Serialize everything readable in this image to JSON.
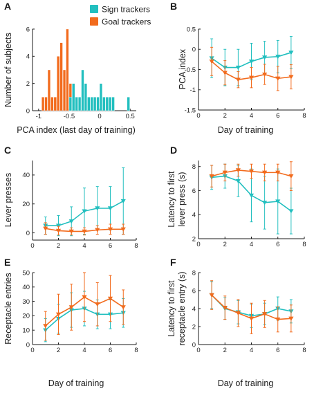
{
  "colors": {
    "sign": "#22BFBF",
    "goal": "#F26B1D"
  },
  "legend": {
    "sign": "Sign trackers",
    "goal": "Goal trackers",
    "placement": "top-right"
  },
  "chart_data": [
    {
      "id": "A",
      "type": "bar",
      "letter": "A",
      "xlabel": "PCA index (last day of training)",
      "ylabel": "Number of subjects",
      "xlim": [
        -1.1,
        0.6
      ],
      "ylim": [
        0,
        6
      ],
      "xticks": [
        -1,
        -0.5,
        0,
        0.5
      ],
      "xtick_labels": [
        "-1",
        "-0.5",
        "0",
        "0.5"
      ],
      "yticks": [
        0,
        2,
        4,
        6
      ],
      "ytick_labels": [
        "0",
        "2",
        "4",
        "6"
      ],
      "bin_width": 0.05,
      "series": [
        {
          "name": "Goal trackers",
          "color_key": "goal",
          "bin_starts": [
            -0.95,
            -0.9,
            -0.85,
            -0.8,
            -0.75,
            -0.7,
            -0.65,
            -0.6,
            -0.55,
            -0.5
          ],
          "values": [
            1,
            1,
            3,
            1,
            1,
            4,
            5,
            3,
            6,
            2
          ]
        },
        {
          "name": "Sign trackers",
          "color_key": "sign",
          "bin_starts": [
            -0.5,
            -0.45,
            -0.4,
            -0.35,
            -0.3,
            -0.25,
            -0.2,
            -0.15,
            -0.1,
            -0.05,
            0.0,
            0.05,
            0.1,
            0.15,
            0.2,
            0.45
          ],
          "values": [
            1,
            2,
            1,
            1,
            3,
            2,
            1,
            1,
            1,
            1,
            2,
            1,
            1,
            1,
            1,
            1
          ]
        }
      ]
    },
    {
      "id": "B",
      "type": "line",
      "letter": "B",
      "xlabel": "Day of training",
      "ylabel": "PCA index",
      "xlim": [
        0,
        8
      ],
      "ylim": [
        -1.5,
        0.5
      ],
      "xticks": [
        0,
        2,
        4,
        6,
        8
      ],
      "xtick_labels": [
        "0",
        "2",
        "4",
        "6",
        "8"
      ],
      "yticks": [
        -1.5,
        -1,
        -0.5,
        0,
        0.5
      ],
      "ytick_labels": [
        "-1.5",
        "-1",
        "-0.5",
        "0",
        "0.5"
      ],
      "x": [
        1,
        2,
        3,
        4,
        5,
        6,
        7
      ],
      "series": [
        {
          "color_key": "sign",
          "values": [
            -0.22,
            -0.45,
            -0.45,
            -0.3,
            -0.2,
            -0.18,
            -0.08
          ],
          "err": [
            0.48,
            0.45,
            0.45,
            0.45,
            0.4,
            0.4,
            0.4
          ]
        },
        {
          "color_key": "goal",
          "values": [
            -0.3,
            -0.58,
            -0.75,
            -0.7,
            -0.62,
            -0.72,
            -0.68
          ],
          "err": [
            0.35,
            0.3,
            0.2,
            0.25,
            0.25,
            0.3,
            0.3
          ]
        }
      ]
    },
    {
      "id": "C",
      "type": "line",
      "letter": "C",
      "xlabel": "",
      "ylabel": "Lever presses",
      "xlim": [
        0,
        8
      ],
      "ylim": [
        -5,
        50
      ],
      "xticks": [
        0,
        2,
        4,
        6,
        8
      ],
      "xtick_labels": [
        "0",
        "2",
        "4",
        "6",
        "8"
      ],
      "yticks": [
        0,
        20,
        40
      ],
      "ytick_labels": [
        "0",
        "20",
        "40"
      ],
      "x": [
        1,
        2,
        3,
        4,
        5,
        6,
        7
      ],
      "series": [
        {
          "color_key": "sign",
          "values": [
            5,
            5,
            8,
            15,
            17,
            17,
            22
          ],
          "err": [
            6,
            7,
            10,
            16,
            15,
            15,
            23
          ]
        },
        {
          "color_key": "goal",
          "values": [
            3,
            1.5,
            1,
            1,
            2,
            2.5,
            2.5
          ],
          "err": [
            4,
            3,
            2.5,
            2.5,
            3,
            3.5,
            3.5
          ]
        }
      ]
    },
    {
      "id": "D",
      "type": "line",
      "letter": "D",
      "xlabel": "",
      "ylabel": "Latency to first lever press (s)",
      "ylabel_lines": [
        "Latency to first",
        "lever press (s)"
      ],
      "xlim": [
        0,
        8
      ],
      "ylim": [
        2,
        8.5
      ],
      "xticks": [
        0,
        2,
        4,
        6,
        8
      ],
      "xtick_labels": [
        "0",
        "2",
        "4",
        "6",
        "8"
      ],
      "yticks": [
        2,
        4,
        6,
        8
      ],
      "ytick_labels": [
        "2",
        "4",
        "6",
        "8"
      ],
      "x": [
        1,
        2,
        3,
        4,
        5,
        6,
        7
      ],
      "series": [
        {
          "color_key": "sign",
          "values": [
            7.1,
            7.2,
            6.8,
            5.6,
            5.0,
            5.1,
            4.3
          ],
          "err": [
            1.0,
            1.0,
            1.3,
            2.2,
            2.2,
            2.7,
            1.9
          ]
        },
        {
          "color_key": "goal",
          "values": [
            7.2,
            7.5,
            7.7,
            7.6,
            7.5,
            7.5,
            7.2
          ],
          "err": [
            0.9,
            0.7,
            0.5,
            0.6,
            0.7,
            0.7,
            1.2
          ]
        }
      ]
    },
    {
      "id": "E",
      "type": "line",
      "letter": "E",
      "xlabel": "Day of training",
      "ylabel": "Receptacle entries",
      "xlim": [
        0,
        8
      ],
      "ylim": [
        0,
        50
      ],
      "xticks": [
        0,
        2,
        4,
        6,
        8
      ],
      "xtick_labels": [
        "0",
        "2",
        "4",
        "6",
        "8"
      ],
      "yticks": [
        0,
        10,
        20,
        30,
        40,
        50
      ],
      "ytick_labels": [
        "0",
        "10",
        "20",
        "30",
        "40",
        "50"
      ],
      "x": [
        1,
        2,
        3,
        4,
        5,
        6,
        7
      ],
      "series": [
        {
          "color_key": "sign",
          "values": [
            10,
            18,
            24,
            25,
            21,
            21,
            22
          ],
          "err": [
            8,
            10,
            12,
            12,
            10,
            10,
            10
          ]
        },
        {
          "color_key": "goal",
          "values": [
            13,
            21,
            26,
            33,
            28,
            32,
            26
          ],
          "err": [
            10,
            14,
            16,
            17,
            15,
            16,
            12
          ]
        }
      ]
    },
    {
      "id": "F",
      "type": "line",
      "letter": "F",
      "xlabel": "Day of training",
      "ylabel": "Latency to first receptacle entry (s)",
      "ylabel_lines": [
        "Latency to first",
        "receptacle entry (s)"
      ],
      "xlim": [
        0,
        8
      ],
      "ylim": [
        0,
        8
      ],
      "xticks": [
        0,
        2,
        4,
        6,
        8
      ],
      "xtick_labels": [
        "0",
        "2",
        "4",
        "6",
        "8"
      ],
      "yticks": [
        0,
        2,
        4,
        6,
        8
      ],
      "ytick_labels": [
        "0",
        "2",
        "4",
        "6",
        "8"
      ],
      "x": [
        1,
        2,
        3,
        4,
        5,
        6,
        7
      ],
      "series": [
        {
          "color_key": "sign",
          "values": [
            5.5,
            4.0,
            3.6,
            3.2,
            3.4,
            4.0,
            3.7
          ],
          "err": [
            1.5,
            1.2,
            1.3,
            1.3,
            1.2,
            1.3,
            1.3
          ]
        },
        {
          "color_key": "goal",
          "values": [
            5.5,
            4.1,
            3.5,
            2.9,
            3.4,
            2.8,
            2.9
          ],
          "err": [
            1.6,
            1.3,
            1.5,
            1.7,
            1.5,
            1.4,
            1.5
          ]
        }
      ]
    }
  ]
}
